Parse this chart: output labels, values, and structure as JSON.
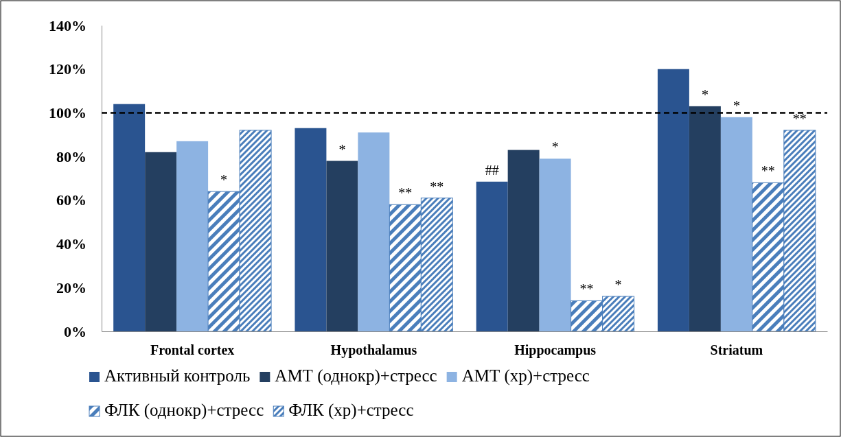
{
  "chart_data": {
    "type": "bar",
    "categories": [
      "Frontal cortex",
      "Hypothalamus",
      "Hippocampus",
      "Striatum"
    ],
    "series": [
      {
        "name": "Активный контроль",
        "color": "#2a5490",
        "values": [
          104,
          93,
          68.5,
          120
        ],
        "value_labels": [
          null,
          null,
          "##",
          null
        ]
      },
      {
        "name": "АМТ (однокр)+стресс",
        "color": "#243f60",
        "values": [
          82,
          78,
          83,
          103
        ],
        "value_labels": [
          null,
          "*",
          null,
          "*"
        ]
      },
      {
        "name": "АМТ (хр)+стресс",
        "color": "#8db3e2",
        "values": [
          87,
          91,
          79,
          98
        ],
        "value_labels": [
          null,
          null,
          "*",
          "*"
        ]
      },
      {
        "name": "ФЛК (однокр)+стресс",
        "color": "#4a7ebb",
        "values": [
          64,
          58,
          14,
          68
        ],
        "value_labels": [
          "*",
          "**",
          "**",
          "**"
        ]
      },
      {
        "name": "ФЛК (хр)+стресс",
        "color": "#4a7ebb",
        "values": [
          92,
          61,
          16,
          92
        ],
        "value_labels": [
          null,
          "**",
          "*",
          "**"
        ]
      }
    ],
    "ylim": [
      0,
      140
    ],
    "yticks": [
      {
        "value": 0,
        "label": "0%"
      },
      {
        "value": 20,
        "label": "20%"
      },
      {
        "value": 40,
        "label": "40%"
      },
      {
        "value": 60,
        "label": "60%"
      },
      {
        "value": 80,
        "label": "80%"
      },
      {
        "value": 100,
        "label": "100%"
      },
      {
        "value": 120,
        "label": "120%"
      },
      {
        "value": 140,
        "label": "140%"
      }
    ],
    "ref_lines": [
      {
        "axis": "y",
        "value": 100,
        "color": "#000000",
        "line_style": "dashed"
      }
    ],
    "grid": false,
    "legend": "bottom"
  }
}
